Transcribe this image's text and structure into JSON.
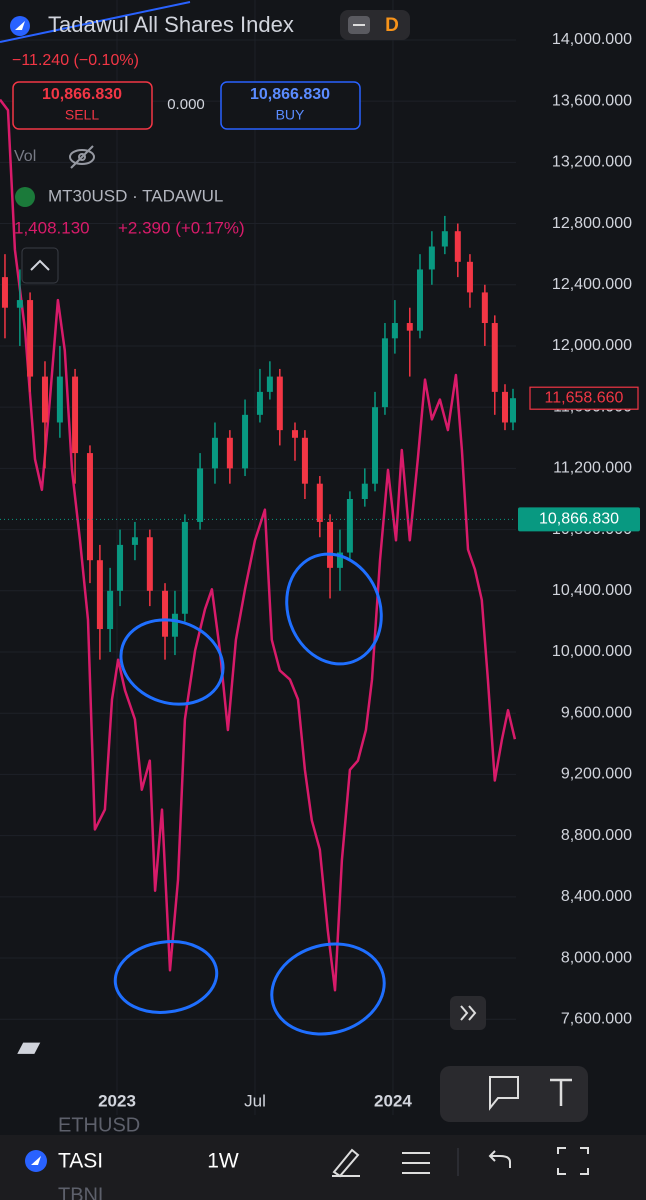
{
  "header": {
    "title": "Tadawul All Shares Index",
    "interval_badge": "D",
    "change": "−11.240 (−0.10%)",
    "sell_price": "10,866.830",
    "sell_label": "SELL",
    "spread": "0.000",
    "buy_price": "10,866.830",
    "buy_label": "BUY",
    "volume_label": "Vol"
  },
  "chart_data": {
    "type": "candlestick",
    "x": [
      2022.594,
      2022.648,
      2022.685,
      2022.739,
      2022.793,
      2022.848,
      2022.902,
      2022.938,
      2022.975,
      2023.011,
      2023.065,
      2023.119,
      2023.174,
      2023.21,
      2023.246,
      2023.301,
      2023.355,
      2023.409,
      2023.464,
      2023.518,
      2023.554,
      2023.59,
      2023.645,
      2023.681,
      2023.735,
      2023.772,
      2023.808,
      2023.844,
      2023.898,
      2023.935,
      2023.971,
      2024.007,
      2024.061,
      2024.098,
      2024.141,
      2024.188,
      2024.235,
      2024.279,
      2024.333,
      2024.369,
      2024.406,
      2024.435
    ],
    "open": [
      12450,
      12250,
      12300,
      11800,
      11500,
      11800,
      11300,
      10600,
      10150,
      10400,
      10700,
      10750,
      10400,
      10100,
      10250,
      10850,
      11200,
      11400,
      11200,
      11550,
      11700,
      11800,
      11450,
      11400,
      11100,
      10850,
      10550,
      10650,
      11000,
      11100,
      11600,
      12050,
      12150,
      12100,
      12500,
      12650,
      12750,
      12550,
      12350,
      12150,
      11700,
      11500
    ],
    "high": [
      12600,
      12500,
      12350,
      11900,
      12000,
      11850,
      11350,
      10700,
      10550,
      10800,
      10850,
      10800,
      10450,
      10400,
      10900,
      11300,
      11500,
      11450,
      11650,
      11850,
      11900,
      11850,
      11500,
      11450,
      11150,
      10900,
      10800,
      11050,
      11200,
      11700,
      12150,
      12300,
      12250,
      12600,
      12750,
      12850,
      12800,
      12600,
      12400,
      12200,
      11750,
      11720
    ],
    "low": [
      12050,
      12000,
      11700,
      11200,
      11400,
      11100,
      10450,
      9950,
      10000,
      10300,
      10600,
      10300,
      9950,
      9980,
      10200,
      10800,
      11100,
      11100,
      11150,
      11500,
      11650,
      11350,
      11250,
      11000,
      10750,
      10350,
      10400,
      10600,
      10950,
      11050,
      11550,
      11950,
      11800,
      12050,
      12400,
      12600,
      12450,
      12250,
      12000,
      11550,
      11450,
      11450
    ],
    "close": [
      12250,
      12300,
      11800,
      11500,
      11800,
      11300,
      10600,
      10150,
      10400,
      10700,
      10750,
      10400,
      10100,
      10250,
      10850,
      11200,
      11400,
      11200,
      11550,
      11700,
      11800,
      11450,
      11400,
      11100,
      10850,
      10550,
      10650,
      11000,
      11100,
      11600,
      12050,
      12150,
      12100,
      12500,
      12650,
      12750,
      12550,
      12350,
      12150,
      11700,
      11500,
      11658.66
    ],
    "color_up": "#089981",
    "color_down": "#f23645",
    "compare": {
      "type": "line",
      "name": "MT30USD · TADAWUL",
      "price": "1,408.130",
      "change": "+2.390 (+0.17%)",
      "color": "#d81b6a",
      "x": [
        2022.576,
        2022.605,
        2022.63,
        2022.667,
        2022.703,
        2022.728,
        2022.757,
        2022.786,
        2022.811,
        2022.837,
        2022.866,
        2022.895,
        2022.92,
        2022.956,
        2022.982,
        2023.004,
        2023.029,
        2023.065,
        2023.09,
        2023.119,
        2023.138,
        2023.163,
        2023.192,
        2023.221,
        2023.246,
        2023.283,
        2023.319,
        2023.344,
        2023.373,
        2023.402,
        2023.431,
        2023.464,
        2023.5,
        2023.536,
        2023.561,
        2023.59,
        2023.627,
        2023.656,
        2023.681,
        2023.706,
        2023.735,
        2023.764,
        2023.79,
        2023.815,
        2023.844,
        2023.873,
        2023.902,
        2023.924,
        2023.953,
        2023.982,
        2024.011,
        2024.032,
        2024.061,
        2024.09,
        2024.116,
        2024.141,
        2024.17,
        2024.199,
        2024.228,
        2024.25,
        2024.272,
        2024.297,
        2024.322,
        2024.344,
        2024.369,
        2024.395,
        2024.417,
        2024.442
      ],
      "values": [
        13610,
        13540,
        12630,
        12100,
        11260,
        11060,
        11650,
        12300,
        11970,
        11190,
        10730,
        10210,
        8840,
        8970,
        9690,
        9950,
        9750,
        9560,
        9100,
        9290,
        8440,
        8970,
        7920,
        8510,
        9560,
        10010,
        10280,
        10410,
        10010,
        9490,
        10080,
        10410,
        10730,
        10930,
        10080,
        9880,
        9820,
        9690,
        9230,
        8900,
        8710,
        8180,
        7790,
        8640,
        9230,
        9290,
        9490,
        9820,
        10600,
        11190,
        10730,
        11320,
        10730,
        11260,
        11780,
        11520,
        11650,
        11450,
        11810,
        11320,
        10670,
        10540,
        10340,
        9820,
        9160,
        9430,
        9620,
        9430
      ]
    },
    "last_price": {
      "value": 11658.66,
      "label": "11,658.660"
    },
    "bid_line": {
      "value": 10866.83,
      "label": "10,866.830"
    },
    "ylim": [
      7203,
      14261
    ],
    "yticks": [
      {
        "value": 14000,
        "label": "14,000.000"
      },
      {
        "value": 13600,
        "label": "13,600.000"
      },
      {
        "value": 13200,
        "label": "13,200.000"
      },
      {
        "value": 12800,
        "label": "12,800.000"
      },
      {
        "value": 12400,
        "label": "12,400.000"
      },
      {
        "value": 12000,
        "label": "12,000.000"
      },
      {
        "value": 11600,
        "label": "11,600.000"
      },
      {
        "value": 11200,
        "label": "11,200.000"
      },
      {
        "value": 10800,
        "label": "10,800.000"
      },
      {
        "value": 10400,
        "label": "10,400.000"
      },
      {
        "value": 10000,
        "label": "10,000.000"
      },
      {
        "value": 9600,
        "label": "9,600.000"
      },
      {
        "value": 9200,
        "label": "9,200.000"
      },
      {
        "value": 8800,
        "label": "8,800.000"
      },
      {
        "value": 8400,
        "label": "8,400.000"
      },
      {
        "value": 8000,
        "label": "8,000.000"
      },
      {
        "value": 7600,
        "label": "7,600.000"
      }
    ],
    "xlim": [
      2022.576,
      2024.917
    ],
    "xticks": [
      {
        "value": 2023,
        "label": "2023"
      },
      {
        "value": 2023.5,
        "label": "Jul"
      },
      {
        "value": 2024,
        "label": "2024"
      }
    ],
    "grid": true
  },
  "bottom_bar": {
    "symbol": "TASI",
    "interval": "1W",
    "peek_above": "ETHUSD",
    "peek_below": "TBNL"
  }
}
